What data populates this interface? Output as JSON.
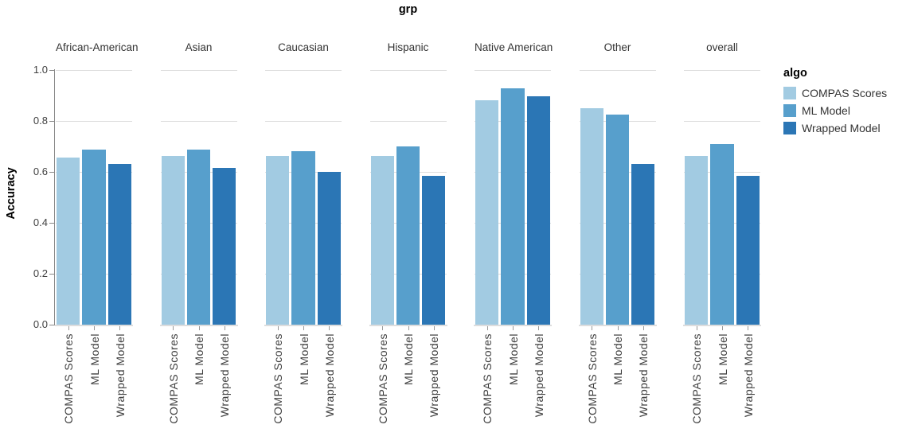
{
  "title": "grp",
  "y_axis": {
    "label": "Accuracy",
    "tick_labels": [
      "0.0",
      "0.2",
      "0.4",
      "0.6",
      "0.8",
      "1.0"
    ]
  },
  "legend": {
    "title": "algo",
    "entries": [
      {
        "label": "COMPAS Scores",
        "color": "#a2cbe2"
      },
      {
        "label": "ML Model",
        "color": "#579fcc"
      },
      {
        "label": "Wrapped Model",
        "color": "#2b76b5"
      }
    ]
  },
  "chart_data": {
    "type": "bar",
    "title": "grp",
    "facet_field": "grp",
    "color_field": "algo",
    "facets": [
      "African-American",
      "Asian",
      "Caucasian",
      "Hispanic",
      "Native American",
      "Other",
      "overall"
    ],
    "categories": [
      "COMPAS Scores",
      "ML Model",
      "Wrapped Model"
    ],
    "series": [
      {
        "facet": "African-American",
        "values": [
          0.655,
          0.688,
          0.63
        ]
      },
      {
        "facet": "Asian",
        "values": [
          0.662,
          0.688,
          0.616
        ]
      },
      {
        "facet": "Caucasian",
        "values": [
          0.664,
          0.681,
          0.601
        ]
      },
      {
        "facet": "Hispanic",
        "values": [
          0.664,
          0.701,
          0.585
        ]
      },
      {
        "facet": "Native American",
        "values": [
          0.88,
          0.929,
          0.896
        ]
      },
      {
        "facet": "Other",
        "values": [
          0.849,
          0.826,
          0.631
        ]
      },
      {
        "facet": "overall",
        "values": [
          0.664,
          0.709,
          0.585
        ]
      }
    ],
    "colors": [
      "#a2cbe2",
      "#579fcc",
      "#2b76b5"
    ],
    "xlabel": "",
    "ylabel": "Accuracy",
    "ylim": [
      0,
      1.0
    ],
    "yticks": [
      0.0,
      0.2,
      0.4,
      0.6,
      0.8,
      1.0
    ],
    "grid": true,
    "legend_title": "algo",
    "legend_position": "right"
  }
}
